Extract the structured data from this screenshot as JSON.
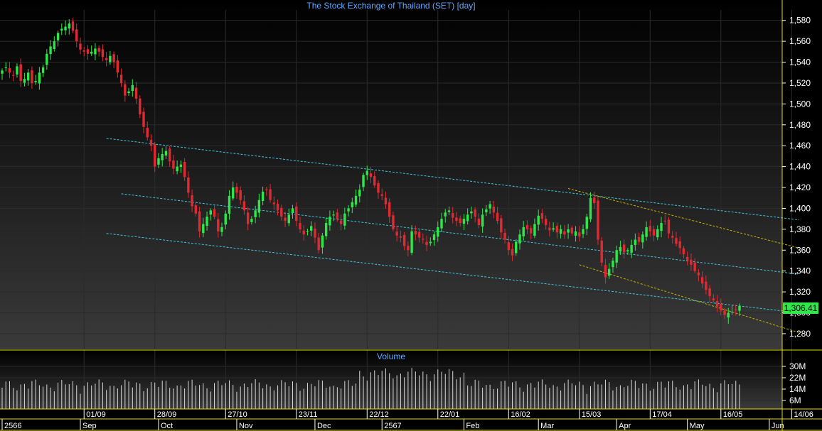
{
  "title": "The Stock Exchange of Thailand (SET) [day]",
  "volume_label": "Volume",
  "last_price_label": "1,306.41",
  "colors": {
    "up": "#2ee84a",
    "down": "#e02a32",
    "axis_text": "#ffffff",
    "title_text": "#5fa8ff",
    "channel_line": "#3fc8dc",
    "wedge_line": "#c8b000",
    "divider": "#e6dc00",
    "volume_bar": "#d9d9d9"
  },
  "chart_data": [
    {
      "type": "candlestick",
      "title": "The Stock Exchange of Thailand (SET) [day]",
      "ylim": [
        1265,
        1590
      ],
      "y_ticks": [
        "1,580",
        "1,560",
        "1,540",
        "1,520",
        "1,500",
        "1,480",
        "1,460",
        "1,440",
        "1,420",
        "1,400",
        "1,380",
        "1,360",
        "1,340",
        "1,320",
        "1,300",
        "1,280"
      ],
      "y_tick_values": [
        1580,
        1560,
        1540,
        1520,
        1500,
        1480,
        1460,
        1440,
        1420,
        1400,
        1380,
        1360,
        1340,
        1320,
        1300,
        1280
      ],
      "x_date_ticks": [
        {
          "label": "01/09",
          "index": 22
        },
        {
          "label": "28/09",
          "index": 41
        },
        {
          "label": "27/10",
          "index": 60
        },
        {
          "label": "23/11",
          "index": 79
        },
        {
          "label": "22/12",
          "index": 98
        },
        {
          "label": "22/01",
          "index": 117
        },
        {
          "label": "16/02",
          "index": 136
        },
        {
          "label": "15/03",
          "index": 155
        },
        {
          "label": "17/04",
          "index": 174
        },
        {
          "label": "16/05",
          "index": 193
        },
        {
          "label": "14/06",
          "index": 212
        }
      ],
      "x_month_ticks": [
        {
          "label": "2566",
          "index": 0
        },
        {
          "label": "Sep",
          "index": 21
        },
        {
          "label": "Oct",
          "index": 42
        },
        {
          "label": "Nov",
          "index": 63
        },
        {
          "label": "Dec",
          "index": 84
        },
        {
          "label": "2567",
          "index": 102
        },
        {
          "label": "Feb",
          "index": 124
        },
        {
          "label": "Mar",
          "index": 144
        },
        {
          "label": "Apr",
          "index": 165
        },
        {
          "label": "May",
          "index": 184
        },
        {
          "label": "Jun",
          "index": 206
        }
      ],
      "last_close": 1306.41,
      "closes": [
        1532,
        1535,
        1530,
        1527,
        1536,
        1522,
        1524,
        1530,
        1520,
        1522,
        1530,
        1535,
        1548,
        1555,
        1560,
        1568,
        1572,
        1574,
        1577,
        1570,
        1560,
        1552,
        1550,
        1548,
        1550,
        1553,
        1550,
        1545,
        1542,
        1546,
        1540,
        1530,
        1520,
        1508,
        1512,
        1518,
        1505,
        1490,
        1478,
        1468,
        1460,
        1440,
        1448,
        1452,
        1455,
        1445,
        1438,
        1440,
        1442,
        1430,
        1415,
        1402,
        1395,
        1378,
        1385,
        1392,
        1398,
        1392,
        1378,
        1382,
        1395,
        1412,
        1420,
        1415,
        1408,
        1398,
        1385,
        1390,
        1398,
        1408,
        1416,
        1418,
        1408,
        1404,
        1398,
        1392,
        1388,
        1394,
        1400,
        1388,
        1380,
        1375,
        1378,
        1383,
        1372,
        1360,
        1374,
        1386,
        1392,
        1394,
        1390,
        1385,
        1395,
        1400,
        1406,
        1412,
        1418,
        1432,
        1436,
        1430,
        1422,
        1415,
        1412,
        1404,
        1392,
        1380,
        1374,
        1372,
        1364,
        1360,
        1378,
        1375,
        1372,
        1370,
        1365,
        1368,
        1375,
        1382,
        1390,
        1396,
        1398,
        1391,
        1388,
        1386,
        1390,
        1394,
        1397,
        1392,
        1384,
        1394,
        1399,
        1404,
        1396,
        1388,
        1377,
        1370,
        1360,
        1355,
        1368,
        1375,
        1382,
        1380,
        1376,
        1385,
        1393,
        1390,
        1384,
        1379,
        1381,
        1377,
        1380,
        1375,
        1380,
        1376,
        1378,
        1373,
        1380,
        1392,
        1410,
        1405,
        1370,
        1348,
        1334,
        1342,
        1350,
        1360,
        1363,
        1358,
        1360,
        1365,
        1370,
        1368,
        1375,
        1382,
        1378,
        1374,
        1380,
        1386,
        1388,
        1376,
        1372,
        1366,
        1362,
        1356,
        1350,
        1346,
        1340,
        1336,
        1328,
        1322,
        1316,
        1312,
        1306,
        1302,
        1298,
        1300,
        1301,
        1303,
        1306.41
      ],
      "volume_ticks": [
        "30M",
        "22M",
        "14M",
        "6M"
      ],
      "volume_tick_values": [
        30,
        22,
        14,
        6
      ],
      "volume_ylim": [
        0,
        37
      ]
    }
  ]
}
